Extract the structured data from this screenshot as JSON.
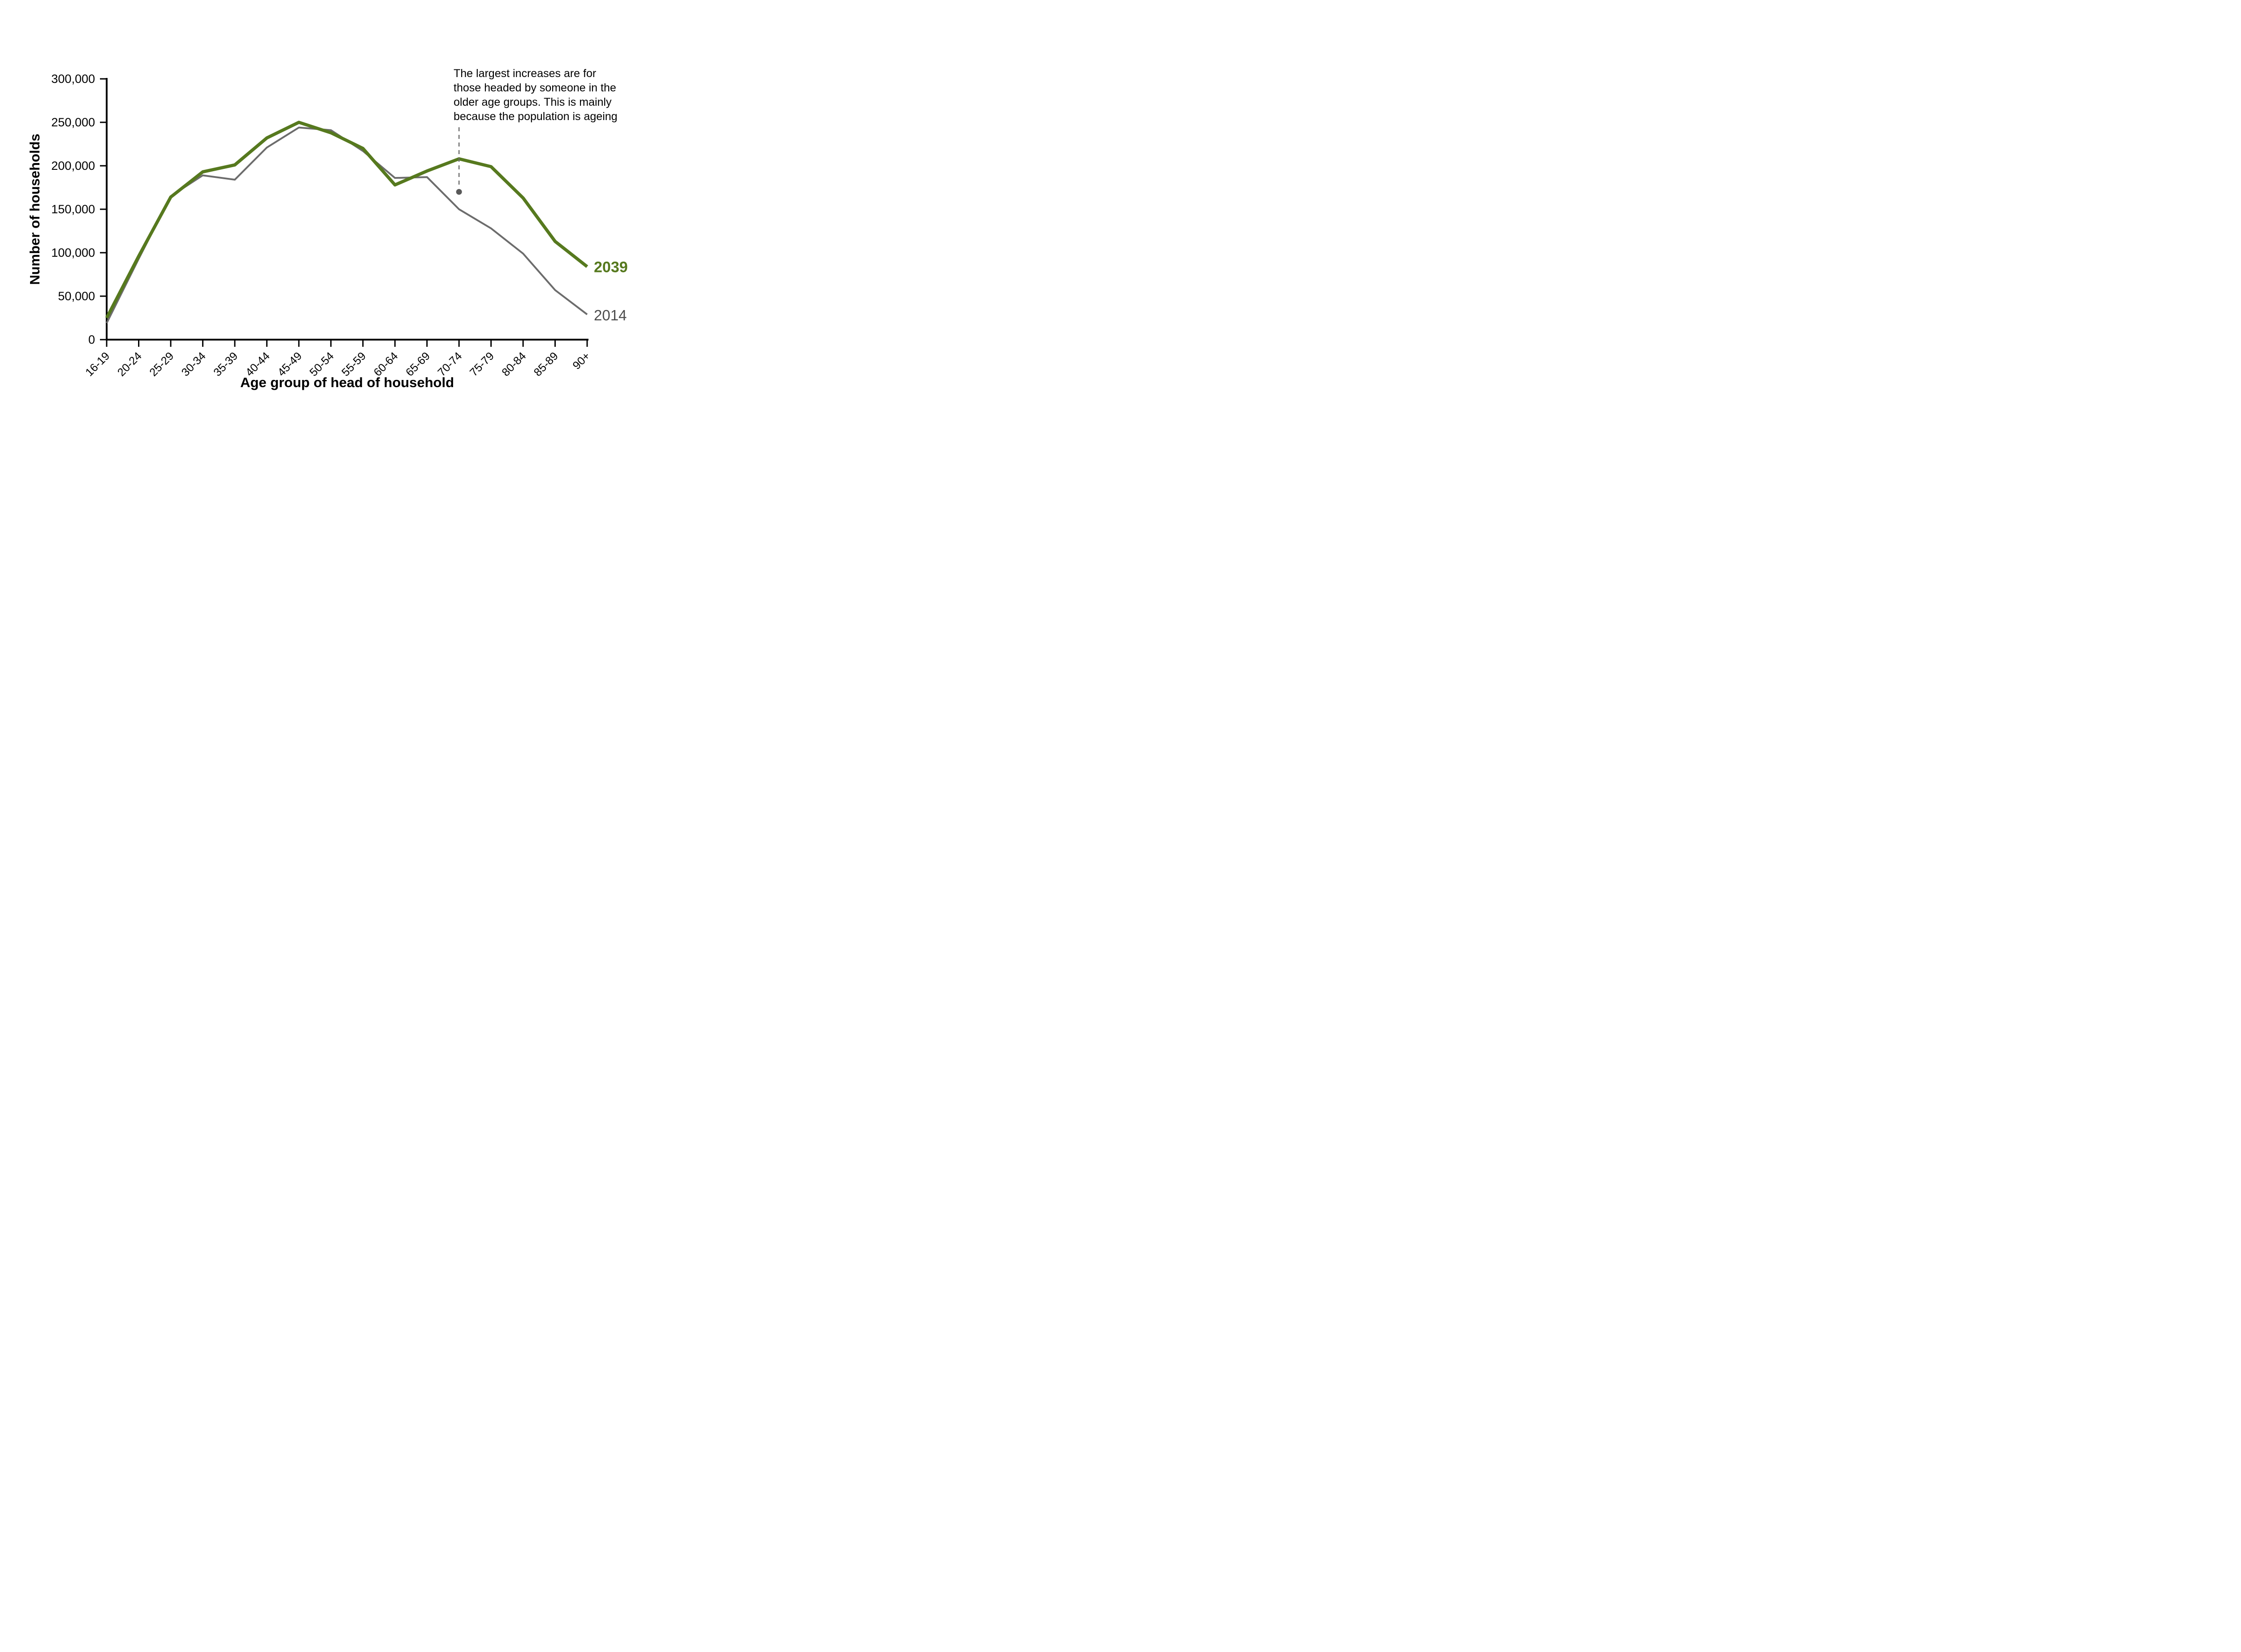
{
  "page": {
    "background_color": "#FFFFFF"
  },
  "chart_data": {
    "type": "line",
    "title": "",
    "xlabel": "Age group of head of household",
    "ylabel": "Number of households",
    "categories": [
      "16-19",
      "20-24",
      "25-29",
      "30-34",
      "35-39",
      "40-44",
      "45-49",
      "50-54",
      "55-59",
      "60-64",
      "65-69",
      "70-74",
      "75-79",
      "80-84",
      "85-89",
      "90+"
    ],
    "series": [
      {
        "name": "2039",
        "color": "#56791E",
        "label_color": "#56791E",
        "stroke_width": 7.2,
        "values": [
          25000,
          96000,
          164000,
          193000,
          201000,
          232000,
          250000,
          238000,
          220000,
          178000,
          194000,
          208000,
          199000,
          163000,
          113000,
          84000
        ]
      },
      {
        "name": "2014",
        "color": "#6C6C6C",
        "label_color": "#4D4D4D",
        "stroke_width": 4.0,
        "values": [
          19000,
          93000,
          165000,
          189000,
          184000,
          221000,
          244000,
          241000,
          217000,
          186000,
          187000,
          150000,
          128000,
          99000,
          57000,
          29000
        ]
      }
    ],
    "ylim": [
      0,
      300000
    ],
    "y_tick_step": 50000,
    "y_tick_labels": [
      "0",
      "50,000",
      "100,000",
      "150,000",
      "200,000",
      "250,000",
      "300,000"
    ],
    "grid": false,
    "legend_position": "right-of-line-ends",
    "annotation": {
      "lines": [
        "The largest increases are for",
        "those headed by someone in the",
        "older age groups. This is mainly",
        "because the population is ageing"
      ],
      "target_category": "70-74",
      "target_value": 170000,
      "dot_color": "#595959",
      "dash_color": "#6A6A6A"
    },
    "axis_color": "#000000"
  }
}
